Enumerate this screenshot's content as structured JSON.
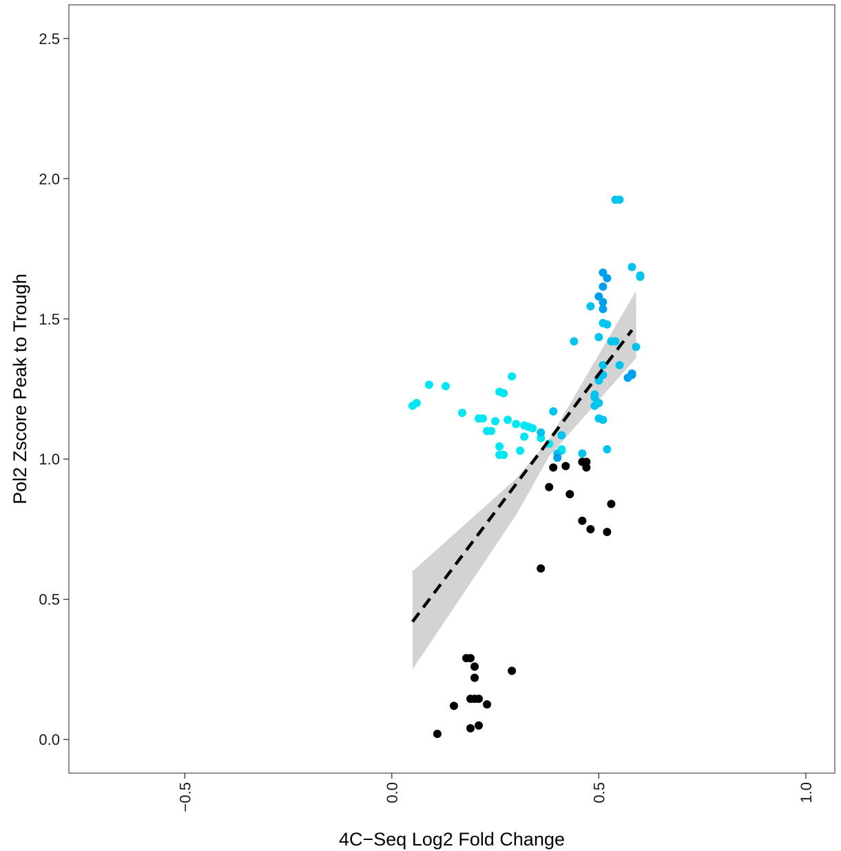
{
  "chart_data": {
    "type": "scatter",
    "title": "",
    "xlabel": "4C−Seq Log2 Fold Change",
    "ylabel": "Pol2 Zscore Peak to Trough",
    "xlim": [
      -0.78,
      1.07
    ],
    "ylim": [
      -0.12,
      2.62
    ],
    "x_ticks": [
      -0.5,
      0.0,
      0.5,
      1.0
    ],
    "x_tick_labels": [
      "−0.5",
      "0.0",
      "0.5",
      "1.0"
    ],
    "y_ticks": [
      0.0,
      0.5,
      1.0,
      1.5,
      2.0,
      2.5
    ],
    "y_tick_labels": [
      "0.0",
      "0.5",
      "1.0",
      "1.5",
      "2.0",
      "2.5"
    ],
    "grid": false,
    "legend": "none",
    "colors": {
      "panel_border": "#555555",
      "axis_ticks": "#333333",
      "low_points": "#000000",
      "trend_line": "#000000",
      "confidence_band": "#d3d3d3"
    },
    "trend": {
      "style": "dashed",
      "x": [
        0.05,
        0.58
      ],
      "y": [
        0.42,
        1.46
      ],
      "band": {
        "x": [
          0.05,
          0.3,
          0.38,
          0.59
        ],
        "lower": [
          0.25,
          0.8,
          1.01,
          1.36
        ],
        "upper": [
          0.6,
          0.93,
          1.07,
          1.6
        ]
      }
    },
    "series": [
      {
        "color": "#000000",
        "points": [
          [
            0.11,
            0.02
          ],
          [
            0.15,
            0.12
          ],
          [
            0.18,
            0.29
          ],
          [
            0.19,
            0.29
          ],
          [
            0.19,
            0.04
          ],
          [
            0.19,
            0.145
          ],
          [
            0.2,
            0.145
          ],
          [
            0.2,
            0.26
          ],
          [
            0.2,
            0.22
          ],
          [
            0.21,
            0.145
          ],
          [
            0.21,
            0.05
          ],
          [
            0.23,
            0.125
          ],
          [
            0.29,
            0.245
          ],
          [
            0.36,
            0.61
          ],
          [
            0.38,
            0.9
          ],
          [
            0.39,
            0.97
          ],
          [
            0.42,
            0.975
          ],
          [
            0.43,
            0.875
          ],
          [
            0.46,
            0.78
          ],
          [
            0.46,
            0.99
          ],
          [
            0.47,
            0.99
          ],
          [
            0.47,
            0.97
          ],
          [
            0.48,
            0.75
          ],
          [
            0.52,
            0.74
          ],
          [
            0.53,
            0.84
          ]
        ]
      },
      {
        "color": "#00e6f2",
        "points": [
          [
            0.05,
            1.19
          ],
          [
            0.06,
            1.2
          ],
          [
            0.09,
            1.265
          ],
          [
            0.13,
            1.26
          ],
          [
            0.17,
            1.165
          ],
          [
            0.21,
            1.145
          ],
          [
            0.22,
            1.145
          ],
          [
            0.23,
            1.1
          ],
          [
            0.24,
            1.1
          ],
          [
            0.25,
            1.135
          ],
          [
            0.26,
            1.24
          ],
          [
            0.27,
            1.235
          ],
          [
            0.26,
            1.045
          ],
          [
            0.26,
            1.015
          ],
          [
            0.27,
            1.015
          ],
          [
            0.28,
            1.14
          ],
          [
            0.29,
            1.295
          ],
          [
            0.3,
            1.125
          ],
          [
            0.31,
            1.03
          ],
          [
            0.32,
            1.12
          ],
          [
            0.33,
            1.115
          ],
          [
            0.34,
            1.11
          ],
          [
            0.32,
            1.08
          ],
          [
            0.36,
            1.075
          ],
          [
            0.38,
            1.055
          ],
          [
            0.41,
            1.03
          ],
          [
            0.41,
            1.035
          ]
        ]
      },
      {
        "color": "#00c4ee",
        "points": [
          [
            0.36,
            1.095
          ],
          [
            0.39,
            1.17
          ],
          [
            0.4,
            1.02
          ],
          [
            0.41,
            1.085
          ],
          [
            0.44,
            1.42
          ],
          [
            0.46,
            1.02
          ],
          [
            0.48,
            1.545
          ],
          [
            0.49,
            1.22
          ],
          [
            0.49,
            1.19
          ],
          [
            0.49,
            1.23
          ],
          [
            0.5,
            1.28
          ],
          [
            0.5,
            1.2
          ],
          [
            0.5,
            1.29
          ],
          [
            0.51,
            1.3
          ],
          [
            0.5,
            1.435
          ],
          [
            0.51,
            1.485
          ],
          [
            0.5,
            1.145
          ],
          [
            0.51,
            1.14
          ],
          [
            0.52,
            1.035
          ],
          [
            0.51,
            1.335
          ],
          [
            0.52,
            1.48
          ],
          [
            0.53,
            1.42
          ],
          [
            0.54,
            1.42
          ],
          [
            0.55,
            1.335
          ],
          [
            0.54,
            1.925
          ],
          [
            0.55,
            1.925
          ],
          [
            0.58,
            1.685
          ],
          [
            0.59,
            1.4
          ],
          [
            0.6,
            1.655
          ],
          [
            0.6,
            1.65
          ]
        ]
      },
      {
        "color": "#009fee",
        "points": [
          [
            0.4,
            1.005
          ],
          [
            0.5,
            1.58
          ],
          [
            0.51,
            1.56
          ],
          [
            0.51,
            1.535
          ],
          [
            0.51,
            1.665
          ],
          [
            0.51,
            1.615
          ],
          [
            0.52,
            1.645
          ],
          [
            0.57,
            1.29
          ],
          [
            0.58,
            1.3
          ],
          [
            0.58,
            1.305
          ]
        ]
      }
    ]
  }
}
